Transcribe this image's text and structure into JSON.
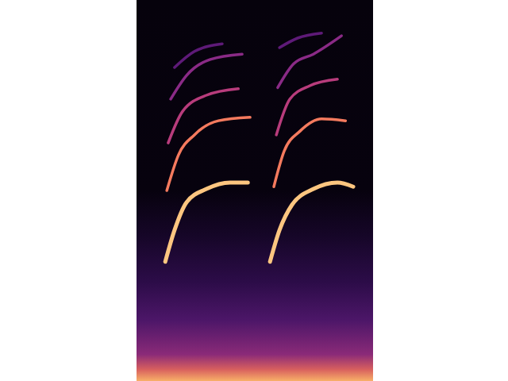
{
  "chart_data": {
    "type": "line",
    "xlim": [
      0,
      100
    ],
    "ylim": [
      0,
      100
    ],
    "tick_labels": false,
    "grid": false,
    "series": [
      {
        "color": "#fdc680",
        "x": [
          12.7,
          16.8,
          22.1,
          30.9,
          41.4,
          49.2
        ],
        "values": [
          31.3,
          39.6,
          46.9,
          50.4,
          52.1,
          52.1
        ]
      },
      {
        "color": "#f47a5e",
        "x": [
          13.4,
          18.6,
          25.6,
          36.2,
          50.2
        ],
        "values": [
          50,
          59.4,
          64.6,
          68.3,
          69.2
        ]
      },
      {
        "color": "#b83c7c",
        "x": [
          14.0,
          20.4,
          30.9,
          45.0
        ],
        "values": [
          62.5,
          70.8,
          75,
          76.7
        ]
      },
      {
        "color": "#8a2a86",
        "x": [
          15.1,
          22.1,
          32.6,
          46.7
        ],
        "values": [
          74,
          80.2,
          84.4,
          85.8
        ]
      },
      {
        "color": "#5e1a78",
        "x": [
          16.8,
          25.6,
          37.9
        ],
        "values": [
          82.3,
          86.5,
          88.5
        ]
      },
      {
        "color": "#fdc680",
        "x": [
          59.0,
          63.2,
          68.8,
          78.2,
          88.8,
          95.8
        ],
        "values": [
          31.3,
          39.6,
          46.3,
          50.4,
          52.1,
          51
        ]
      },
      {
        "color": "#f47a5e",
        "x": [
          60.7,
          65.3,
          72.3,
          81.8,
          92.4
        ],
        "values": [
          51,
          60.4,
          65.6,
          68.8,
          68.3
        ]
      },
      {
        "color": "#b83c7c",
        "x": [
          61.8,
          67.8,
          76.6,
          88.8
        ],
        "values": [
          64.6,
          74,
          77.5,
          79.2
        ]
      },
      {
        "color": "#8a2a86",
        "x": [
          62.4,
          69.5,
          78.2,
          90.6
        ],
        "values": [
          77,
          83.3,
          85.8,
          90.6
        ]
      },
      {
        "color": "#5e1a78",
        "x": [
          63.2,
          71.2,
          81.8
        ],
        "values": [
          87.5,
          90,
          91.3
        ]
      }
    ]
  }
}
